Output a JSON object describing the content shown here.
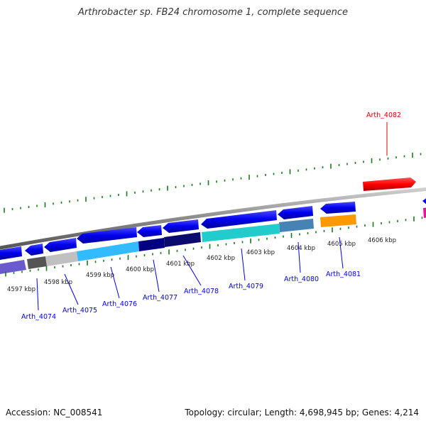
{
  "title": "Arthrobacter sp. FB24 chromosome 1, complete sequence",
  "footer": {
    "accession": "Accession: NC_008541",
    "summary": "Topology: circular; Length: 4,698,945 bp; Genes: 4,214"
  },
  "axis": {
    "unit": "kbp",
    "ticks": [
      "4597 kbp",
      "4598 kbp",
      "4599 kbp",
      "4600 kbp",
      "4601 kbp",
      "4602 kbp",
      "4603 kbp",
      "4604 kbp",
      "4605 kbp",
      "4606 kbp"
    ]
  },
  "genes": [
    {
      "label": "Arth_4074",
      "color": "#0000dd"
    },
    {
      "label": "Arth_4075",
      "color": "#0000dd"
    },
    {
      "label": "Arth_4076",
      "color": "#0000dd"
    },
    {
      "label": "Arth_4077",
      "color": "#0000dd"
    },
    {
      "label": "Arth_4078",
      "color": "#0000dd"
    },
    {
      "label": "Arth_4079",
      "color": "#0000dd"
    },
    {
      "label": "Arth_4080",
      "color": "#0000dd"
    },
    {
      "label": "Arth_4081",
      "color": "#0000dd"
    },
    {
      "label": "Arth_4082",
      "color": "#dd0000"
    }
  ],
  "colors": {
    "forward_gene": "#0000ee",
    "highlight_gene": "#ff0000",
    "backbone": "#888888",
    "tick": "#1a7a1a",
    "label": "#0000cc",
    "label_highlight": "#cc0000"
  }
}
